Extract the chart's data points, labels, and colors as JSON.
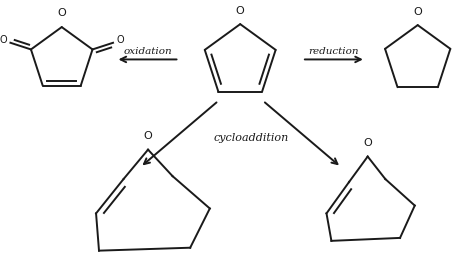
{
  "bg_color": "#ffffff",
  "line_color": "#1a1a1a",
  "text_color": "#1a1a1a",
  "line_width": 1.4,
  "oxidation_label": "oxidation",
  "reduction_label": "reduction",
  "cycloaddition_label": "cycloaddition",
  "figsize": [
    4.74,
    2.64
  ],
  "dpi": 100
}
